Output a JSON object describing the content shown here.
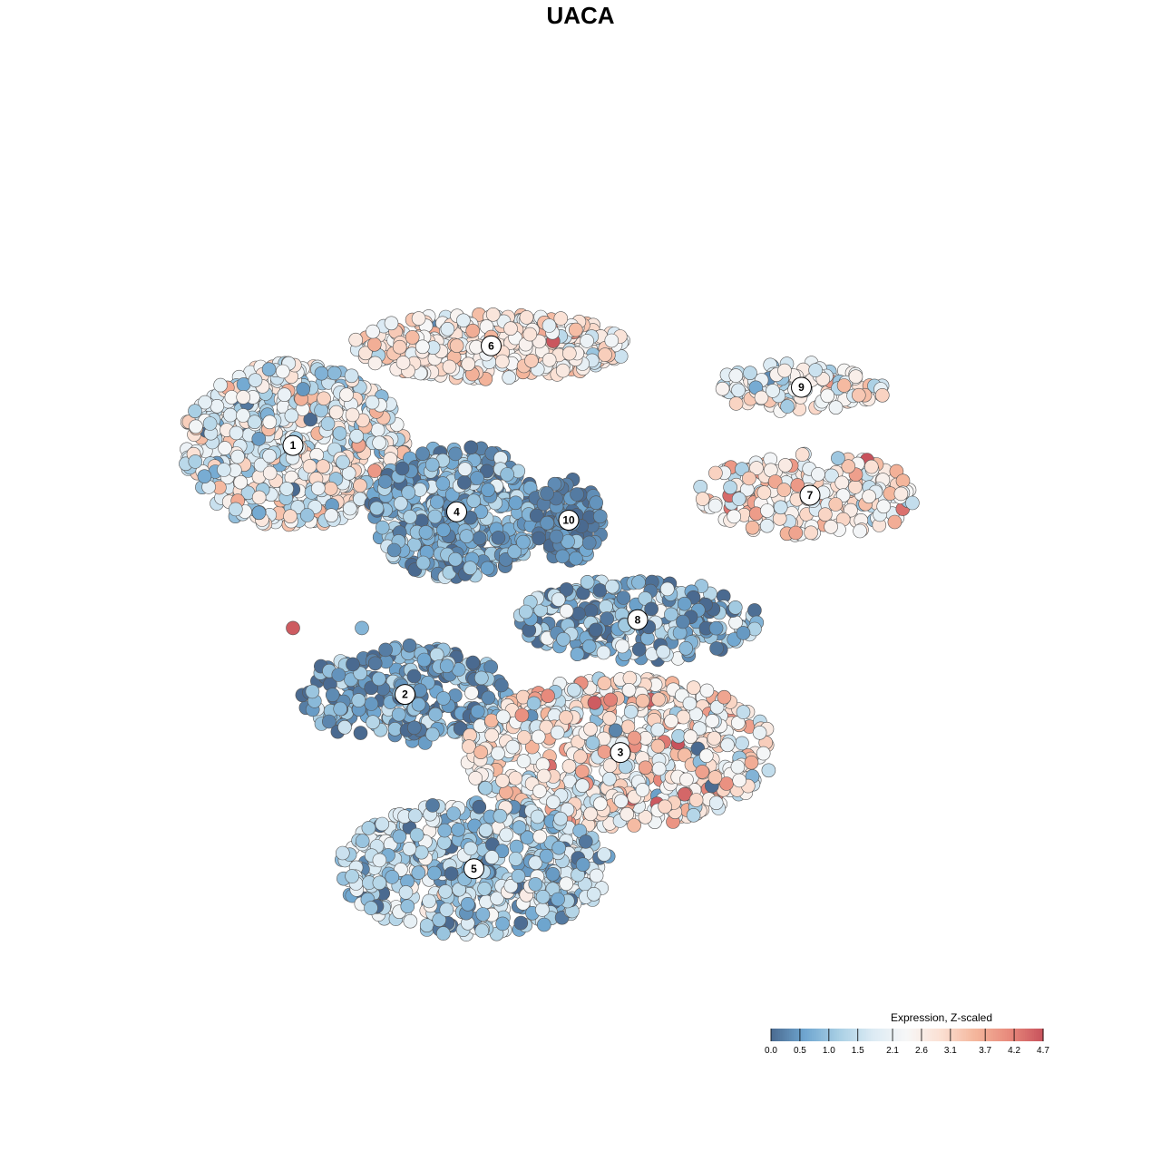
{
  "chart_data": {
    "type": "scatter",
    "title": "UACA",
    "xlabel": "",
    "ylabel": "",
    "xlim": [
      0,
      100
    ],
    "ylim": [
      0,
      100
    ],
    "grid": false,
    "legend": {
      "title": "Expression, Z-scaled",
      "placement": "bottom-right",
      "ticks": [
        "0.0",
        "0.5",
        "1.0",
        "1.5",
        "2.1",
        "2.6",
        "3.1",
        "3.7",
        "4.2",
        "4.7"
      ],
      "range": [
        0,
        4.7
      ]
    },
    "colorscale": [
      "#4a6a90",
      "#6fa6d0",
      "#a9cfe4",
      "#dcebf4",
      "#f7f7f7",
      "#fbe0d3",
      "#f4b69c",
      "#e88a7c",
      "#c8525c"
    ],
    "point_stroke": "#555555",
    "clusters": [
      {
        "label": "1",
        "x": 14,
        "y": 66,
        "rx": 13,
        "ry": 10,
        "mean": 2.0,
        "sd": 0.8,
        "n": 620
      },
      {
        "label": "6",
        "x": 37,
        "y": 78,
        "rx": 16,
        "ry": 4,
        "mean": 2.6,
        "sd": 0.6,
        "n": 380
      },
      {
        "label": "4",
        "x": 33,
        "y": 58,
        "rx": 10,
        "ry": 8,
        "mean": 0.7,
        "sd": 0.5,
        "n": 420
      },
      {
        "label": "10",
        "x": 46,
        "y": 57,
        "rx": 4,
        "ry": 5,
        "mean": 0.3,
        "sd": 0.3,
        "n": 90
      },
      {
        "label": "9",
        "x": 73,
        "y": 73,
        "rx": 10,
        "ry": 3,
        "mean": 2.2,
        "sd": 0.7,
        "n": 120
      },
      {
        "label": "7",
        "x": 74,
        "y": 60,
        "rx": 13,
        "ry": 5,
        "mean": 2.7,
        "sd": 0.7,
        "n": 200
      },
      {
        "label": "8",
        "x": 54,
        "y": 45,
        "rx": 14,
        "ry": 5,
        "mean": 0.8,
        "sd": 0.8,
        "n": 240
      },
      {
        "label": "2",
        "x": 27,
        "y": 36,
        "rx": 12,
        "ry": 6,
        "mean": 0.6,
        "sd": 0.6,
        "n": 260
      },
      {
        "label": "3",
        "x": 52,
        "y": 29,
        "rx": 18,
        "ry": 9,
        "mean": 2.5,
        "sd": 0.8,
        "n": 650
      },
      {
        "label": "5",
        "x": 35,
        "y": 15,
        "rx": 16,
        "ry": 8,
        "mean": 1.3,
        "sd": 0.7,
        "n": 520
      }
    ],
    "outliers": [
      {
        "x": 14,
        "y": 44,
        "value": 4.6
      },
      {
        "x": 22,
        "y": 44,
        "value": 0.8
      },
      {
        "x": 49,
        "y": 35,
        "value": 4.6
      }
    ]
  }
}
